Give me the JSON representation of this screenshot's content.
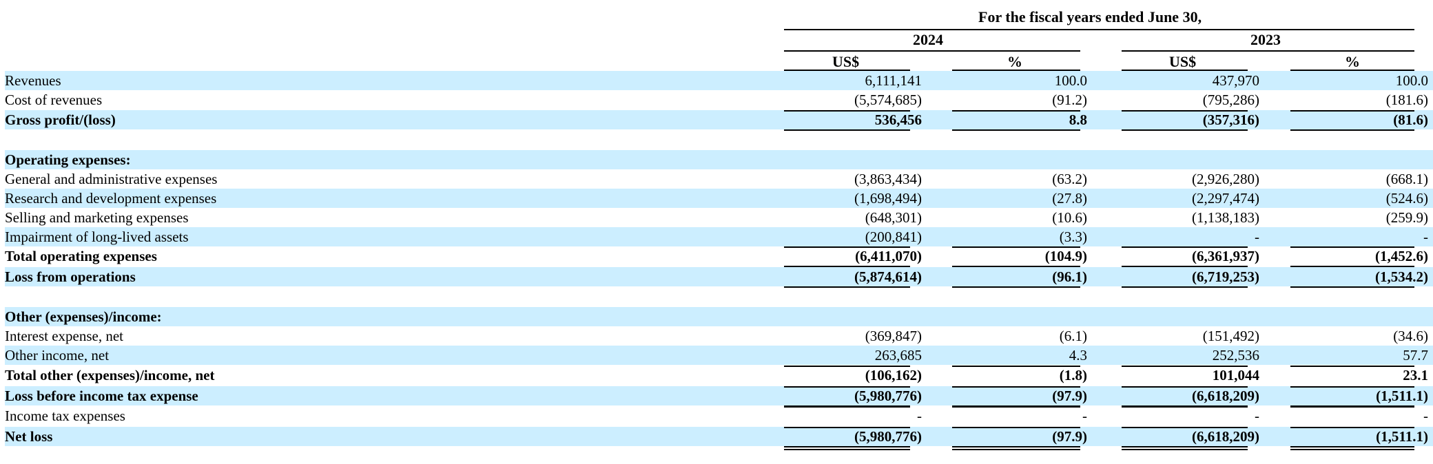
{
  "header": {
    "period": "For the fiscal years ended June 30,",
    "years": [
      "2024",
      "2023"
    ],
    "units": [
      "US$",
      "%",
      "US$",
      "%"
    ]
  },
  "rows": [
    {
      "label": "Revenues",
      "values": [
        "6,111,141",
        "100.0",
        "437,970",
        "100.0"
      ],
      "bold": false,
      "shaded": true
    },
    {
      "label": "Cost of revenues",
      "values": [
        "(5,574,685)",
        "(91.2)",
        "(795,286)",
        "(181.6)"
      ],
      "bold": false,
      "shaded": false
    },
    {
      "label": "Gross profit/(loss)",
      "values": [
        "536,456",
        "8.8",
        "(357,316)",
        "(81.6)"
      ],
      "bold": true,
      "shaded": true
    },
    {
      "label": "",
      "values": [
        "",
        "",
        "",
        ""
      ],
      "bold": false,
      "shaded": false
    },
    {
      "label": "Operating expenses:",
      "values": [
        "",
        "",
        "",
        ""
      ],
      "bold": true,
      "shaded": true
    },
    {
      "label": "General and administrative expenses",
      "values": [
        "(3,863,434)",
        "(63.2)",
        "(2,926,280)",
        "(668.1)"
      ],
      "bold": false,
      "shaded": false
    },
    {
      "label": "Research and development expenses",
      "values": [
        "(1,698,494)",
        "(27.8)",
        "(2,297,474)",
        "(524.6)"
      ],
      "bold": false,
      "shaded": true
    },
    {
      "label": "Selling and marketing expenses",
      "values": [
        "(648,301)",
        "(10.6)",
        "(1,138,183)",
        "(259.9)"
      ],
      "bold": false,
      "shaded": false
    },
    {
      "label": "Impairment of long-lived assets",
      "values": [
        "(200,841)",
        "(3.3)",
        "-",
        "-"
      ],
      "bold": false,
      "shaded": true
    },
    {
      "label": "Total operating expenses",
      "values": [
        "(6,411,070)",
        "(104.9)",
        "(6,361,937)",
        "(1,452.6)"
      ],
      "bold": true,
      "shaded": false
    },
    {
      "label": "Loss from operations",
      "values": [
        "(5,874,614)",
        "(96.1)",
        "(6,719,253)",
        "(1,534.2)"
      ],
      "bold": true,
      "shaded": true
    },
    {
      "label": "",
      "values": [
        "",
        "",
        "",
        ""
      ],
      "bold": false,
      "shaded": false
    },
    {
      "label": "Other (expenses)/income:",
      "values": [
        "",
        "",
        "",
        ""
      ],
      "bold": true,
      "shaded": true
    },
    {
      "label": "Interest expense, net",
      "values": [
        "(369,847)",
        "(6.1)",
        "(151,492)",
        "(34.6)"
      ],
      "bold": false,
      "shaded": false
    },
    {
      "label": "Other income, net",
      "values": [
        "263,685",
        "4.3",
        "252,536",
        "57.7"
      ],
      "bold": false,
      "shaded": true
    },
    {
      "label": "Total other (expenses)/income, net",
      "values": [
        "(106,162)",
        "(1.8)",
        "101,044",
        "23.1"
      ],
      "bold": true,
      "shaded": false
    },
    {
      "label": "Loss before income tax expense",
      "values": [
        "(5,980,776)",
        "(97.9)",
        "(6,618,209)",
        "(1,511.1)"
      ],
      "bold": true,
      "shaded": true
    },
    {
      "label": "Income tax expenses",
      "values": [
        "-",
        "-",
        "-",
        "-"
      ],
      "bold": false,
      "shaded": false
    },
    {
      "label": "Net loss",
      "values": [
        "(5,980,776)",
        "(97.9)",
        "(6,618,209)",
        "(1,511.1)"
      ],
      "bold": true,
      "shaded": true
    }
  ]
}
